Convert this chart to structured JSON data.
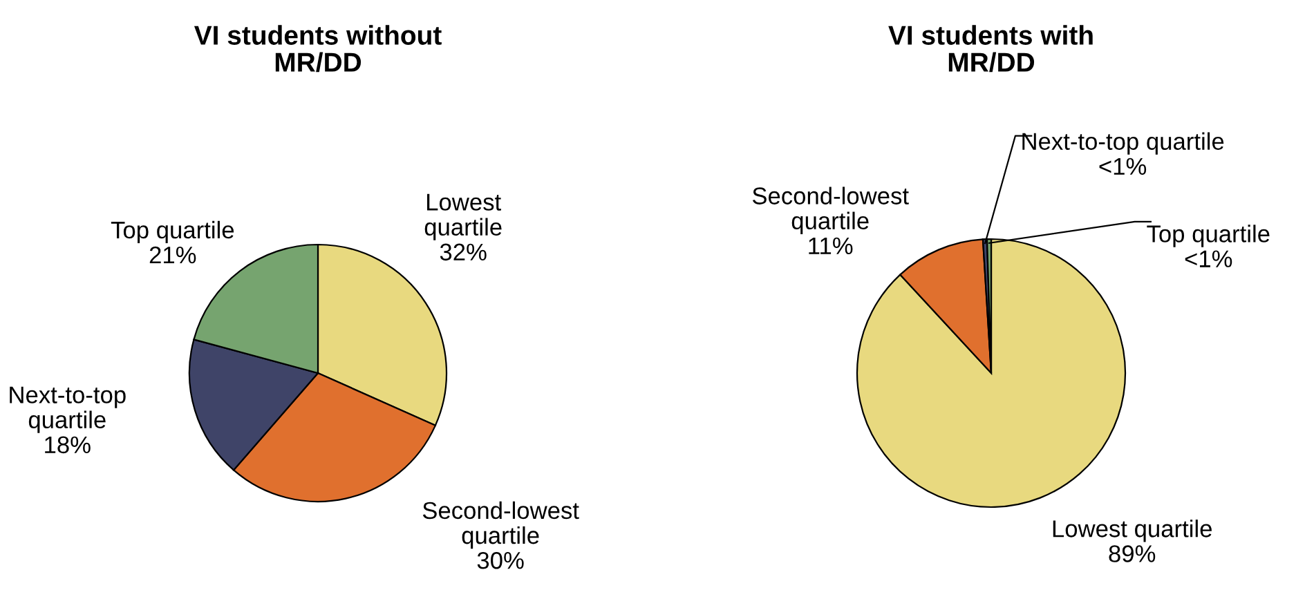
{
  "chart_data": [
    {
      "type": "pie",
      "title": "VI students without\nMR/DD",
      "categories": [
        "Lowest\nquartile",
        "Second-lowest\nquartile",
        "Next-to-top\nquartile",
        "Top quartile"
      ],
      "values": [
        32,
        30,
        18,
        21
      ],
      "value_labels": [
        "32%",
        "30%",
        "18%",
        "21%"
      ],
      "colors": [
        "#e8d97f",
        "#e0702e",
        "#3f4468",
        "#76a46f"
      ]
    },
    {
      "type": "pie",
      "title": "VI students with\nMR/DD",
      "categories": [
        "Lowest quartile",
        "Second-lowest\nquartile",
        "Next-to-top quartile",
        "Top quartile"
      ],
      "values": [
        89,
        11,
        0.5,
        0.5
      ],
      "value_labels": [
        "89%",
        "11%",
        "<1%",
        "<1%"
      ],
      "colors": [
        "#e8d97f",
        "#e0702e",
        "#3f4468",
        "#76a46f"
      ]
    }
  ]
}
